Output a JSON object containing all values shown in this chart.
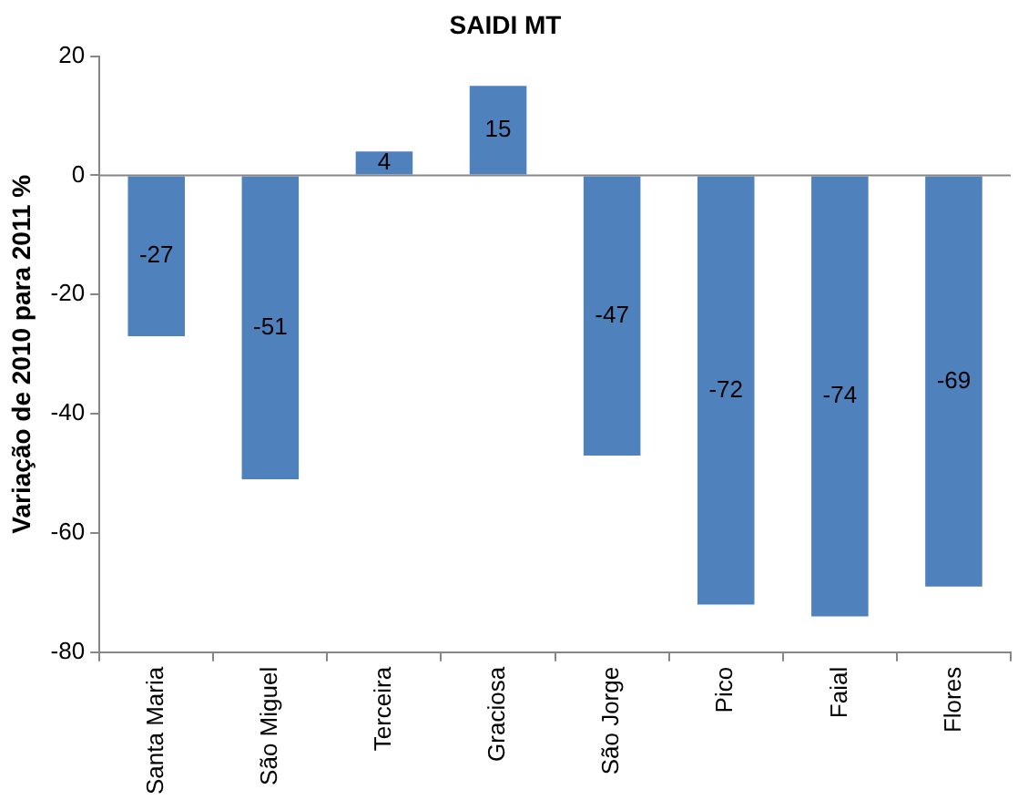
{
  "chart_data": {
    "type": "bar",
    "title": "SAIDI MT",
    "ylabel": "Variação de 2010 para 2011 %",
    "categories": [
      "Santa Maria",
      "São Miguel",
      "Terceira",
      "Graciosa",
      "São Jorge",
      "Pico",
      "Faial",
      "Flores"
    ],
    "values": [
      -27,
      -51,
      4,
      15,
      -47,
      -72,
      -74,
      -69
    ],
    "color": "#4f81bd",
    "ref_lines": [
      {
        "axis": "y",
        "value": 0,
        "color": "#868686"
      }
    ],
    "ylim": [
      -80,
      20
    ],
    "yticks": [
      -80,
      -60,
      -40,
      -20,
      0,
      20
    ],
    "data_labels": true,
    "legend": false,
    "grid": false
  }
}
